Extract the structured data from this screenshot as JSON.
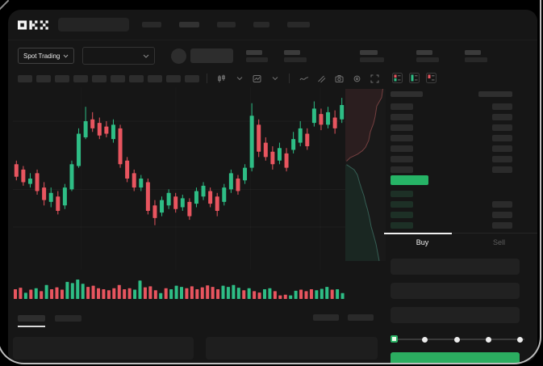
{
  "window": {
    "brand_logo": "OKX"
  },
  "colors": {
    "app_bg": "#161616",
    "up_green": "#2EBD85",
    "down_red": "#E8555F",
    "last_price_bg": "#26B366",
    "buy_button_bg": "#2BAD60",
    "active_tab_indicator": "#EFEFEF"
  },
  "top_nav": {
    "search_value": "",
    "nav_placeholder_widths": [
      24,
      25,
      23,
      20,
      28
    ]
  },
  "market_bar": {
    "market_type_selector": {
      "label": "Spot Trading",
      "icon": "chevron-down-icon"
    },
    "pair_dropdown": {
      "value": "",
      "icon": "chevron-down-icon"
    },
    "stat_placeholders": 5
  },
  "chart_toolbar": {
    "timeframe_placeholder_count": 10,
    "icons": [
      "candle-style-icon",
      "chevron-down-icon",
      "indicators-icon",
      "chevron-down-icon",
      "line-tool-icon",
      "draw-tool-icon",
      "camera-icon",
      "settings-icon",
      "fullscreen-icon"
    ]
  },
  "chart_data": {
    "type": "candlestick",
    "title": "",
    "xlabel": "",
    "ylabel": "",
    "note": "skeleton chart, no axis labels visible; values normalized 0-1 from chart top",
    "up_color": "#2EBD85",
    "down_color": "#E8555F",
    "candles_normalized": [
      [
        0.42,
        0.49,
        0.4,
        0.51,
        "r"
      ],
      [
        0.45,
        0.52,
        0.43,
        0.54,
        "r"
      ],
      [
        0.5,
        0.53,
        0.47,
        0.55,
        "g"
      ],
      [
        0.47,
        0.57,
        0.45,
        0.59,
        "r"
      ],
      [
        0.55,
        0.62,
        0.52,
        0.65,
        "r"
      ],
      [
        0.58,
        0.63,
        0.55,
        0.66,
        "g"
      ],
      [
        0.6,
        0.68,
        0.57,
        0.7,
        "r"
      ],
      [
        0.55,
        0.65,
        0.53,
        0.67,
        "g"
      ],
      [
        0.42,
        0.56,
        0.4,
        0.57,
        "g"
      ],
      [
        0.25,
        0.43,
        0.22,
        0.44,
        "g"
      ],
      [
        0.18,
        0.27,
        0.1,
        0.28,
        "g"
      ],
      [
        0.17,
        0.22,
        0.13,
        0.24,
        "r"
      ],
      [
        0.19,
        0.26,
        0.16,
        0.28,
        "r"
      ],
      [
        0.21,
        0.25,
        0.18,
        0.27,
        "r"
      ],
      [
        0.2,
        0.28,
        0.17,
        0.3,
        "g"
      ],
      [
        0.22,
        0.42,
        0.2,
        0.44,
        "r"
      ],
      [
        0.4,
        0.5,
        0.38,
        0.52,
        "r"
      ],
      [
        0.47,
        0.55,
        0.45,
        0.57,
        "r"
      ],
      [
        0.5,
        0.55,
        0.48,
        0.57,
        "g"
      ],
      [
        0.52,
        0.68,
        0.5,
        0.7,
        "r"
      ],
      [
        0.65,
        0.72,
        0.62,
        0.76,
        "r"
      ],
      [
        0.62,
        0.69,
        0.6,
        0.71,
        "g"
      ],
      [
        0.58,
        0.65,
        0.56,
        0.67,
        "g"
      ],
      [
        0.6,
        0.67,
        0.58,
        0.69,
        "r"
      ],
      [
        0.61,
        0.66,
        0.59,
        0.68,
        "g"
      ],
      [
        0.63,
        0.71,
        0.61,
        0.73,
        "r"
      ],
      [
        0.57,
        0.64,
        0.55,
        0.66,
        "g"
      ],
      [
        0.54,
        0.6,
        0.52,
        0.62,
        "g"
      ],
      [
        0.57,
        0.64,
        0.55,
        0.66,
        "r"
      ],
      [
        0.6,
        0.68,
        0.58,
        0.71,
        "r"
      ],
      [
        0.55,
        0.63,
        0.53,
        0.65,
        "g"
      ],
      [
        0.47,
        0.56,
        0.45,
        0.58,
        "g"
      ],
      [
        0.5,
        0.57,
        0.48,
        0.59,
        "r"
      ],
      [
        0.44,
        0.51,
        0.42,
        0.53,
        "g"
      ],
      [
        0.15,
        0.44,
        0.08,
        0.46,
        "g"
      ],
      [
        0.2,
        0.35,
        0.17,
        0.38,
        "r"
      ],
      [
        0.3,
        0.38,
        0.27,
        0.4,
        "r"
      ],
      [
        0.35,
        0.42,
        0.32,
        0.45,
        "r"
      ],
      [
        0.33,
        0.4,
        0.3,
        0.42,
        "g"
      ],
      [
        0.36,
        0.44,
        0.33,
        0.46,
        "r"
      ],
      [
        0.28,
        0.34,
        0.24,
        0.36,
        "g"
      ],
      [
        0.22,
        0.3,
        0.18,
        0.32,
        "g"
      ],
      [
        0.25,
        0.32,
        0.22,
        0.34,
        "r"
      ],
      [
        0.11,
        0.19,
        0.07,
        0.21,
        "g"
      ],
      [
        0.14,
        0.2,
        0.11,
        0.23,
        "r"
      ],
      [
        0.13,
        0.2,
        0.1,
        0.22,
        "g"
      ],
      [
        0.16,
        0.22,
        0.12,
        0.25,
        "r"
      ],
      [
        0.09,
        0.17,
        0.05,
        0.19,
        "g"
      ]
    ],
    "volume_normalized": [
      [
        0.5,
        "r"
      ],
      [
        0.58,
        "r"
      ],
      [
        0.32,
        "g"
      ],
      [
        0.48,
        "r"
      ],
      [
        0.55,
        "g"
      ],
      [
        0.4,
        "r"
      ],
      [
        0.72,
        "g"
      ],
      [
        0.5,
        "r"
      ],
      [
        0.6,
        "r"
      ],
      [
        0.48,
        "r"
      ],
      [
        0.88,
        "g"
      ],
      [
        0.82,
        "g"
      ],
      [
        1.0,
        "g"
      ],
      [
        0.78,
        "g"
      ],
      [
        0.62,
        "r"
      ],
      [
        0.68,
        "r"
      ],
      [
        0.55,
        "r"
      ],
      [
        0.5,
        "r"
      ],
      [
        0.45,
        "r"
      ],
      [
        0.55,
        "r"
      ],
      [
        0.72,
        "r"
      ],
      [
        0.5,
        "r"
      ],
      [
        0.55,
        "r"
      ],
      [
        0.48,
        "g"
      ],
      [
        0.95,
        "g"
      ],
      [
        0.6,
        "r"
      ],
      [
        0.65,
        "r"
      ],
      [
        0.45,
        "r"
      ],
      [
        0.3,
        "g"
      ],
      [
        0.55,
        "r"
      ],
      [
        0.5,
        "g"
      ],
      [
        0.68,
        "g"
      ],
      [
        0.62,
        "g"
      ],
      [
        0.55,
        "r"
      ],
      [
        0.65,
        "r"
      ],
      [
        0.5,
        "r"
      ],
      [
        0.6,
        "r"
      ],
      [
        0.7,
        "r"
      ],
      [
        0.62,
        "r"
      ],
      [
        0.5,
        "r"
      ],
      [
        0.68,
        "g"
      ],
      [
        0.62,
        "g"
      ],
      [
        0.72,
        "g"
      ],
      [
        0.58,
        "g"
      ],
      [
        0.45,
        "r"
      ],
      [
        0.55,
        "g"
      ],
      [
        0.4,
        "r"
      ],
      [
        0.33,
        "r"
      ],
      [
        0.5,
        "g"
      ],
      [
        0.55,
        "g"
      ],
      [
        0.4,
        "r"
      ],
      [
        0.18,
        "r"
      ],
      [
        0.22,
        "r"
      ],
      [
        0.18,
        "g"
      ],
      [
        0.42,
        "g"
      ],
      [
        0.48,
        "r"
      ],
      [
        0.4,
        "r"
      ],
      [
        0.5,
        "r"
      ],
      [
        0.45,
        "g"
      ],
      [
        0.52,
        "g"
      ],
      [
        0.62,
        "g"
      ],
      [
        0.48,
        "r"
      ],
      [
        0.5,
        "g"
      ],
      [
        0.3,
        "g"
      ]
    ],
    "grid": {
      "h_lines": [
        0.18,
        0.56,
        0.77
      ],
      "v_lines": [
        0.205,
        0.49,
        0.715,
        0.925
      ]
    }
  },
  "depth_chart": {
    "asks_line": [
      [
        0.93,
        0.0
      ],
      [
        0.9,
        0.05
      ],
      [
        0.78,
        0.1
      ],
      [
        0.74,
        0.16
      ],
      [
        0.7,
        0.2
      ],
      [
        0.62,
        0.25
      ],
      [
        0.58,
        0.3
      ],
      [
        0.5,
        0.34
      ],
      [
        0.42,
        0.36
      ],
      [
        0.3,
        0.38
      ],
      [
        0.12,
        0.4
      ],
      [
        0.03,
        0.42
      ]
    ],
    "bids_line": [
      [
        0.03,
        0.44
      ],
      [
        0.22,
        0.47
      ],
      [
        0.3,
        0.5
      ],
      [
        0.36,
        0.55
      ],
      [
        0.4,
        0.58
      ],
      [
        0.46,
        0.62
      ],
      [
        0.5,
        0.66
      ],
      [
        0.55,
        0.7
      ],
      [
        0.6,
        0.75
      ],
      [
        0.64,
        0.8
      ],
      [
        0.7,
        0.85
      ],
      [
        0.76,
        0.9
      ],
      [
        0.8,
        0.95
      ],
      [
        0.84,
        1.0
      ]
    ]
  },
  "order_book": {
    "view_toggle_icons": [
      "combined-book-icon",
      "buy-book-icon",
      "sell-book-icon"
    ],
    "header_placeholder_count": 2,
    "ask_row_count": 7,
    "last_price_highlighted": true,
    "bid_rows_amount_bar": [
      false,
      true,
      true,
      true
    ]
  },
  "trade_panel": {
    "buy_tab_label": "Buy",
    "sell_tab_label": "Sell",
    "active_tab": "Buy",
    "input_placeholder_count": 3,
    "amount_slider": {
      "stop_count": 5,
      "active_stop_index": 0
    }
  },
  "bottom_panel": {
    "tab_placeholder_count": 2,
    "has_active_tab_underline": true,
    "action_placeholder_count": 2,
    "content_panel_count": 2
  }
}
